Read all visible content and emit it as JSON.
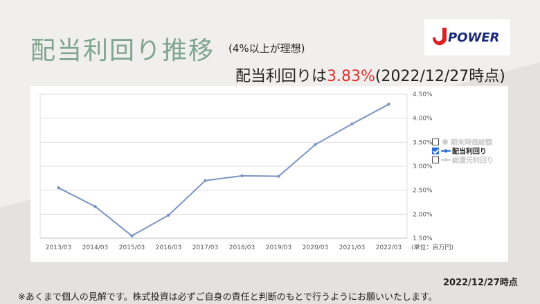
{
  "header": {
    "title": "配当利回り推移",
    "subtitle": "(4%以上が理想)",
    "yield_prefix": "配当利回りは",
    "yield_value": "3.83%",
    "yield_suffix": "(2022/12/27時点)"
  },
  "logo": {
    "text": "POWER",
    "icon": "j-power-logo",
    "color": "#1a2a7a",
    "mark_color": "#e02020"
  },
  "legend": {
    "items": [
      {
        "label": "期末時価総額",
        "checked": false
      },
      {
        "label": "配当利回り",
        "checked": true
      },
      {
        "label": "総還元利回り",
        "checked": false
      }
    ]
  },
  "chart_data": {
    "type": "line",
    "categories": [
      "2013/03",
      "2014/03",
      "2015/03",
      "2016/03",
      "2017/03",
      "2018/03",
      "2019/03",
      "2020/03",
      "2021/03",
      "2022/03"
    ],
    "series": [
      {
        "name": "配当利回り",
        "values": [
          2.55,
          2.16,
          1.55,
          1.98,
          2.7,
          2.8,
          2.79,
          3.45,
          3.88,
          4.29
        ],
        "color": "#7b94c4"
      }
    ],
    "y_ticks": [
      "1.50%",
      "2.00%",
      "2.50%",
      "3.00%",
      "3.50%",
      "4.00%",
      "4.50%"
    ],
    "ylim": [
      1.5,
      4.5
    ],
    "unit_label": "(単位：百万円)",
    "grid": true
  },
  "footer": {
    "date": "2022/12/27時点",
    "note": "※あくまで個人の見解です。株式投資は必ずご自身の責任と判断のもとで行うようにお願いいたします。"
  }
}
